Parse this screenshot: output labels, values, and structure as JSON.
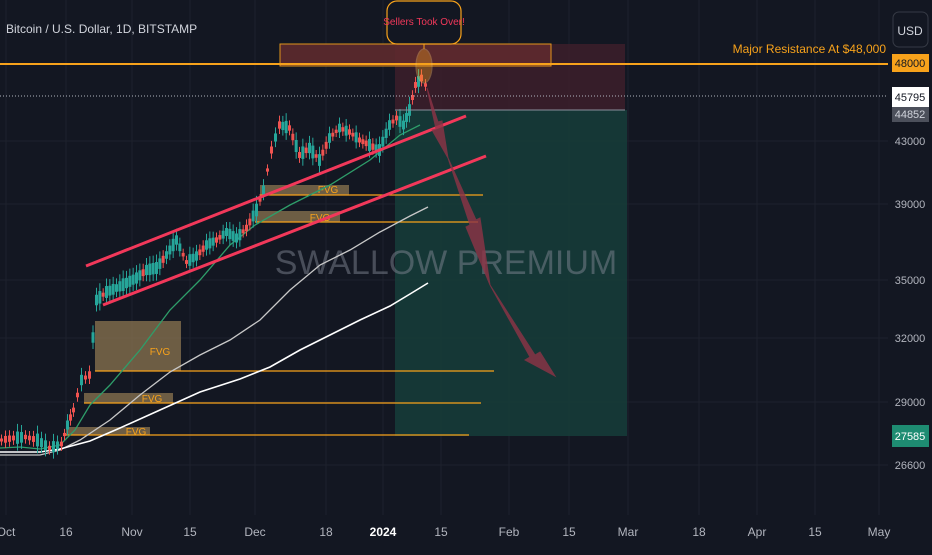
{
  "header": {
    "symbol_title": "Bitcoin / U.S. Dollar, 1D, BITSTAMP",
    "currency_button": "USD"
  },
  "annotations": {
    "sellers_label": "Sellers Took Over!",
    "resistance_label": "Major Resistance At $48,000",
    "watermark": "SWALLOW PREMIUM",
    "fvg_label": "FVG"
  },
  "colors": {
    "background": "#131722",
    "candle_up": "#26a69a",
    "candle_down": "#ef5350",
    "channel": "#f2385a",
    "resistance": "#f7a21b",
    "fvg_box": "#8c7650",
    "target_zone": "#163b38",
    "stop_zone": "#3d1f2a",
    "ma_fast": "#2e9e6a",
    "ma_mid": "#c8c8c8",
    "ma_slow": "#ffffff",
    "arrow": "#8f3447"
  },
  "chart_data": {
    "type": "candlestick",
    "title": "Bitcoin / U.S. Dollar, 1D, BITSTAMP",
    "y_ticks": [
      26600,
      29000,
      32000,
      35000,
      39000,
      43000
    ],
    "x_ticks": [
      "Oct",
      "16",
      "Nov",
      "15",
      "Dec",
      "18",
      "2024",
      "15",
      "Feb",
      "15",
      "Mar",
      "18",
      "Apr",
      "15",
      "May"
    ],
    "price_labels": [
      {
        "value": "48000",
        "style": "resistance"
      },
      {
        "value": "45795",
        "style": "last"
      },
      {
        "value": "44852",
        "style": "muted"
      },
      {
        "value": "27585",
        "style": "target"
      }
    ],
    "resistance_level": 48000,
    "current_price": 45795,
    "target_price": 27585,
    "fvg_zones": [
      {
        "label": "FVG",
        "from": "Oct 23",
        "top": 32800,
        "bottom": 30500
      },
      {
        "label": "FVG",
        "from": "Oct 20",
        "top": 29800,
        "bottom": 29000
      },
      {
        "label": "FVG",
        "from": "Oct 16",
        "top": 28200,
        "bottom": 27600
      },
      {
        "label": "FVG",
        "from": "Dec 1",
        "top": 40600,
        "bottom": 39900
      },
      {
        "label": "FVG",
        "from": "Dec 1",
        "top": 39100,
        "bottom": 38300
      }
    ]
  }
}
